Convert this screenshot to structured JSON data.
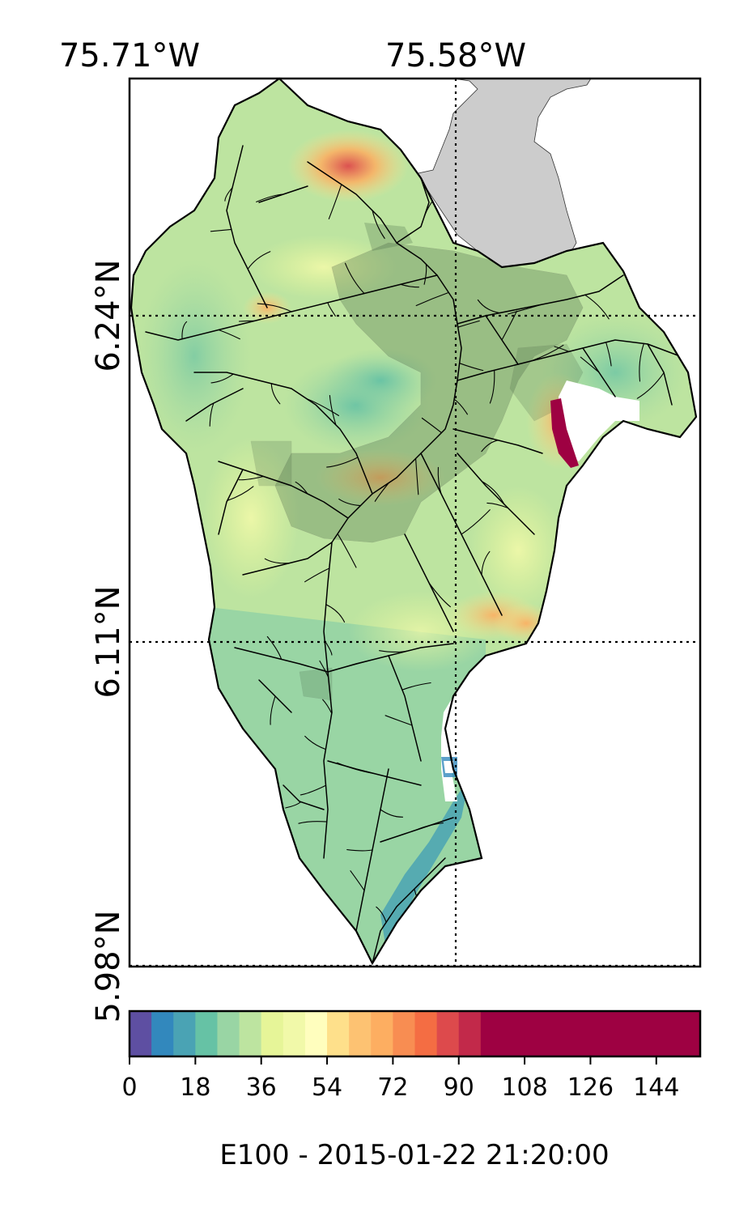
{
  "map": {
    "lon_labels": [
      "75.71°W",
      "75.58°W"
    ],
    "lat_labels": [
      "6.24°N",
      "6.11°N",
      "5.98°N"
    ],
    "colorbar": {
      "ticks": [
        "0",
        "18",
        "36",
        "54",
        "72",
        "90",
        "108",
        "126",
        "144"
      ],
      "label": "E100 - 2015-01-22 21:20:00",
      "range": [
        0,
        156
      ],
      "colors": [
        "#5e4fa2",
        "#3288bd",
        "#4aa3b4",
        "#66c2a5",
        "#99d5a4",
        "#bde4a0",
        "#e6f598",
        "#f1f9a9",
        "#fffebe",
        "#fee08b",
        "#fdc272",
        "#fdae61",
        "#f88d52",
        "#f46d43",
        "#dd4a4c",
        "#c2294a",
        "#9e0142"
      ]
    },
    "colors": {
      "outside_area": "#cccccc",
      "saturated_region": "#9e0142",
      "gridline": "#000000"
    }
  }
}
